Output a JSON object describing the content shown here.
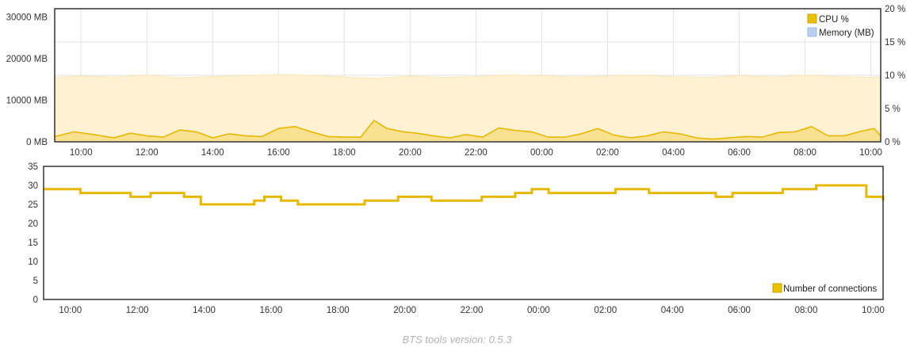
{
  "chart_data": [
    {
      "type": "area",
      "title": "",
      "x_ticks": [
        "10:00",
        "12:00",
        "14:00",
        "16:00",
        "18:00",
        "20:00",
        "22:00",
        "00:00",
        "02:00",
        "04:00",
        "06:00",
        "08:00",
        "10:00"
      ],
      "x_range_hours": [
        9.2,
        34.3
      ],
      "y_left": {
        "ticks": [
          "30000 MB",
          "20000 MB",
          "10000 MB",
          "0 MB"
        ],
        "tick_values": [
          30000,
          20000,
          10000,
          0
        ],
        "range": [
          0,
          32000
        ]
      },
      "y_right": {
        "ticks": [
          "20 %",
          "15 %",
          "10 %",
          "5 %",
          "0 %"
        ],
        "tick_values": [
          20,
          15,
          10,
          5,
          0
        ],
        "range": [
          0,
          20
        ]
      },
      "grid": true,
      "legend_position": "top-right",
      "series": [
        {
          "name": "CPU %",
          "axis": "right",
          "color": "#e8b800",
          "fill": "#f3d35a",
          "x_hours": [
            9.2,
            9.8,
            10.5,
            11.0,
            11.5,
            12.0,
            12.5,
            13.0,
            13.5,
            14.0,
            14.5,
            15.0,
            15.5,
            16.0,
            16.5,
            17.0,
            17.5,
            18.0,
            18.5,
            18.9,
            19.3,
            19.8,
            20.2,
            20.7,
            21.2,
            21.7,
            22.2,
            22.7,
            23.2,
            23.7,
            24.2,
            24.7,
            25.2,
            25.7,
            26.2,
            26.7,
            27.2,
            27.7,
            28.2,
            28.7,
            29.2,
            29.7,
            30.2,
            30.7,
            31.2,
            31.7,
            32.2,
            32.7,
            33.2,
            33.7,
            34.1,
            34.3
          ],
          "values": [
            0.8,
            1.5,
            1.0,
            0.6,
            1.3,
            0.9,
            0.7,
            1.8,
            1.5,
            0.6,
            1.2,
            0.9,
            0.8,
            2.0,
            2.3,
            1.5,
            0.8,
            0.7,
            0.7,
            3.2,
            2.0,
            1.5,
            1.3,
            0.9,
            0.6,
            1.1,
            0.7,
            2.1,
            1.7,
            1.5,
            0.7,
            0.7,
            1.2,
            2.0,
            1.0,
            0.6,
            0.9,
            1.5,
            1.2,
            0.6,
            0.4,
            0.6,
            0.8,
            0.7,
            1.4,
            1.5,
            2.3,
            0.9,
            0.9,
            1.6,
            2.0,
            0.9
          ]
        },
        {
          "name": "Memory (MB)",
          "axis": "left",
          "color": "#b8d1ee",
          "fill": "#fff2d2",
          "x_hours": [
            9.2,
            10.0,
            11.0,
            12.0,
            13.0,
            14.0,
            15.0,
            16.0,
            17.0,
            18.0,
            19.0,
            20.0,
            21.0,
            22.0,
            23.0,
            24.0,
            25.0,
            26.0,
            27.0,
            28.0,
            29.0,
            30.0,
            31.0,
            32.0,
            33.0,
            34.0,
            34.3
          ],
          "values": [
            15500,
            15800,
            15600,
            16000,
            15400,
            15700,
            15900,
            16200,
            16000,
            15600,
            15300,
            15800,
            15500,
            15700,
            16100,
            15900,
            15600,
            15800,
            16000,
            15700,
            15500,
            15900,
            15600,
            16000,
            15700,
            15500,
            15600
          ]
        }
      ]
    },
    {
      "type": "line",
      "title": "",
      "x_ticks": [
        "10:00",
        "12:00",
        "14:00",
        "16:00",
        "18:00",
        "20:00",
        "22:00",
        "00:00",
        "02:00",
        "04:00",
        "06:00",
        "08:00",
        "10:00"
      ],
      "x_range_hours": [
        9.2,
        34.3
      ],
      "y_ticks": [
        "35",
        "30",
        "25",
        "20",
        "15",
        "10",
        "5",
        "0"
      ],
      "y_tick_values": [
        35,
        30,
        25,
        20,
        15,
        10,
        5,
        0
      ],
      "ylim": [
        0,
        35
      ],
      "grid": false,
      "legend_position": "bottom-right",
      "series": [
        {
          "name": "Number of connections",
          "color": "#e8b800",
          "x_hours": [
            9.2,
            9.8,
            10.3,
            10.8,
            11.3,
            11.8,
            12.4,
            12.9,
            13.4,
            13.9,
            14.5,
            15.0,
            15.5,
            15.8,
            16.3,
            16.8,
            17.3,
            17.8,
            18.3,
            18.8,
            19.3,
            19.8,
            20.3,
            20.8,
            21.3,
            21.8,
            22.3,
            22.8,
            23.3,
            23.8,
            24.3,
            24.8,
            25.3,
            25.8,
            26.3,
            26.8,
            27.3,
            27.8,
            28.3,
            28.8,
            29.3,
            29.8,
            30.3,
            30.8,
            31.3,
            31.8,
            32.3,
            32.8,
            33.3,
            33.8,
            34.3
          ],
          "values": [
            29,
            29,
            28,
            28,
            28,
            27,
            28,
            28,
            27,
            25,
            25,
            25,
            26,
            27,
            26,
            25,
            25,
            25,
            25,
            26,
            26,
            27,
            27,
            26,
            26,
            26,
            27,
            27,
            28,
            29,
            28,
            28,
            28,
            28,
            29,
            29,
            28,
            28,
            28,
            28,
            27,
            28,
            28,
            28,
            29,
            29,
            30,
            30,
            30,
            27,
            26
          ]
        }
      ]
    }
  ],
  "footer": {
    "label": "BTS tools version: 0.5.3"
  }
}
